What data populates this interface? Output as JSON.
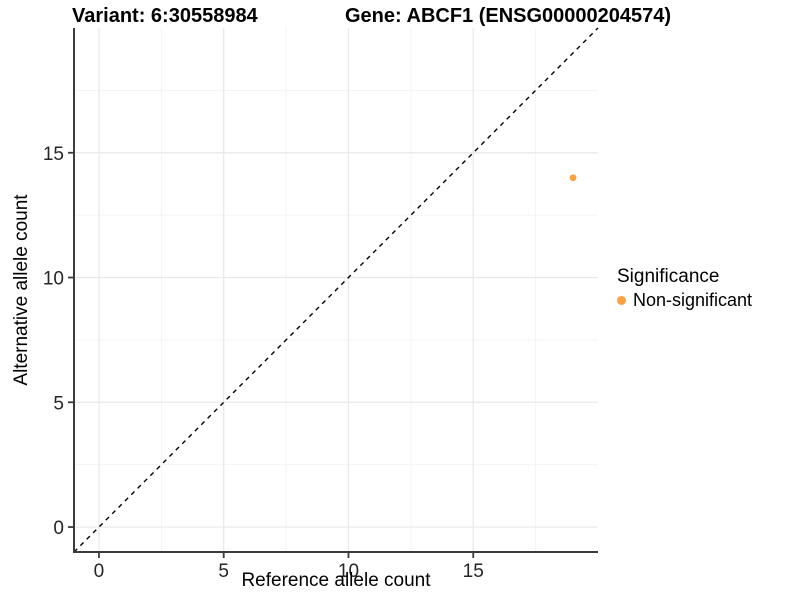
{
  "header": {
    "variant_title": "Variant: 6:30558984",
    "gene_title": "Gene: ABCF1 (ENSG00000204574)"
  },
  "chart_data": {
    "type": "scatter",
    "title": "Variant: 6:30558984   Gene: ABCF1 (ENSG00000204574)",
    "xlabel": "Reference allele count",
    "ylabel": "Alternative allele count",
    "xlim": [
      -1,
      20
    ],
    "ylim": [
      -1,
      20
    ],
    "x_ticks": [
      0,
      5,
      10,
      15
    ],
    "y_ticks": [
      0,
      5,
      10,
      15
    ],
    "x_minor_ticks": [
      2.5,
      7.5,
      12.5,
      17.5
    ],
    "y_minor_ticks": [
      2.5,
      7.5,
      12.5,
      17.5
    ],
    "grid": true,
    "legend_position": "right",
    "series": [
      {
        "name": "Non-significant",
        "color": "#F9A242",
        "points": [
          {
            "x": 19,
            "y": 14
          }
        ]
      }
    ],
    "reference_line": {
      "type": "identity y=x",
      "style": "dashed",
      "color": "#000000"
    },
    "legend": {
      "title": "Significance",
      "items": [
        {
          "label": "Non-significant",
          "color": "#F9A242"
        }
      ]
    }
  },
  "colors": {
    "background": "#FFFFFF",
    "grid_major": "#E8E8E8",
    "grid_minor": "#F2F2F2",
    "axis": "#3B3B3B",
    "tick_label": "#262626",
    "point": "#F9A242"
  }
}
